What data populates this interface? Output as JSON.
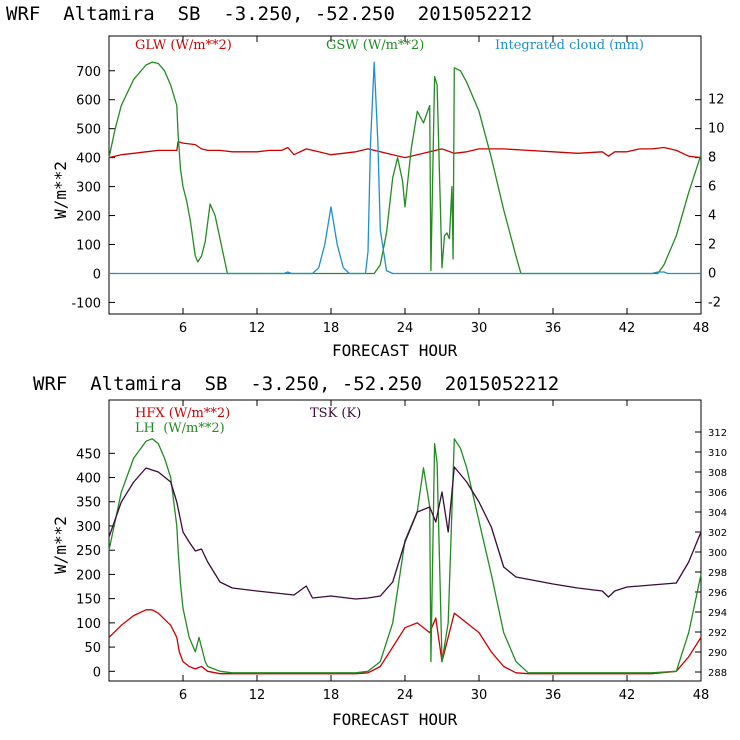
{
  "chart_data": [
    {
      "type": "line",
      "title": "WRF  Altamira  SB  -3.250, -52.250  2015052212",
      "xlabel": "FORECAST HOUR",
      "ylabel": "W/m**2",
      "xlim": [
        0,
        48
      ],
      "ylim": [
        -140,
        820
      ],
      "y2lim": [
        -2.8,
        16.4
      ],
      "xticks": [
        6,
        12,
        18,
        24,
        30,
        36,
        42,
        48
      ],
      "yticks": [
        -100,
        0,
        100,
        200,
        300,
        400,
        500,
        600,
        700
      ],
      "y2ticks": [
        -2,
        0,
        2,
        4,
        6,
        8,
        10,
        12
      ],
      "legend": [
        {
          "label": "GLW (W/m**2)",
          "color": "#cc0000"
        },
        {
          "label": "GSW (W/m**2)",
          "color": "#228B22"
        },
        {
          "label": "Integrated cloud (mm)",
          "color": "#1e8fd0"
        }
      ],
      "series": [
        {
          "name": "GLW",
          "axis": "left",
          "color": "#cc0000",
          "x": [
            0,
            1,
            2,
            3,
            4,
            5,
            5.5,
            5.6,
            6,
            7,
            7.5,
            8,
            9,
            10,
            12,
            13,
            14,
            14.5,
            15,
            16,
            17,
            18,
            19,
            20,
            21,
            22,
            23,
            24,
            25,
            26,
            27,
            28,
            29,
            30,
            32,
            34,
            36,
            38,
            40,
            40.5,
            41,
            42,
            43,
            44,
            45,
            46,
            47,
            48
          ],
          "y": [
            400,
            410,
            415,
            420,
            425,
            425,
            425,
            455,
            450,
            445,
            430,
            425,
            425,
            420,
            420,
            425,
            425,
            435,
            410,
            430,
            420,
            410,
            415,
            420,
            430,
            420,
            410,
            400,
            410,
            420,
            430,
            415,
            420,
            430,
            430,
            425,
            420,
            415,
            420,
            405,
            420,
            420,
            430,
            430,
            435,
            425,
            405,
            400
          ]
        },
        {
          "name": "GSW",
          "axis": "left",
          "color": "#228B22",
          "x": [
            0,
            0.5,
            1,
            2,
            3,
            3.5,
            4,
            4.5,
            5,
            5.5,
            5.6,
            5.8,
            6,
            6.3,
            6.6,
            7,
            7.2,
            7.5,
            7.8,
            8.2,
            8.6,
            9,
            9.3,
            9.6,
            21.5,
            22,
            22.5,
            23,
            23.4,
            23.8,
            24,
            24.5,
            25,
            25.5,
            26,
            26.1,
            26.4,
            26.6,
            27,
            27.2,
            27.4,
            27.6,
            27.8,
            27.9,
            28,
            28.5,
            29,
            30,
            31,
            32,
            33,
            33.4,
            44.5,
            45,
            46,
            47,
            48
          ],
          "y": [
            400,
            500,
            580,
            670,
            720,
            730,
            725,
            700,
            650,
            580,
            480,
            360,
            300,
            250,
            180,
            60,
            40,
            60,
            110,
            240,
            200,
            120,
            60,
            0,
            0,
            30,
            140,
            330,
            400,
            320,
            230,
            430,
            560,
            520,
            580,
            10,
            680,
            650,
            20,
            130,
            140,
            120,
            300,
            50,
            710,
            700,
            660,
            560,
            400,
            220,
            60,
            0,
            0,
            30,
            130,
            280,
            410
          ]
        },
        {
          "name": "Integrated cloud",
          "axis": "right",
          "color": "#1e8fd0",
          "x": [
            0,
            14.2,
            14.5,
            14.8,
            16.5,
            17,
            17.5,
            18,
            18.5,
            19,
            19.5,
            20.8,
            21,
            21.2,
            21.5,
            21.8,
            22,
            22.5,
            23,
            44,
            44.5,
            45,
            45.3,
            48
          ],
          "y": [
            0,
            0,
            0.1,
            0,
            0,
            0.4,
            2,
            4.6,
            2,
            0.4,
            0,
            0,
            1.5,
            9,
            14.6,
            9,
            3,
            0.2,
            0,
            0,
            0.1,
            0.1,
            0,
            0
          ]
        }
      ]
    },
    {
      "type": "line",
      "title": "WRF  Altamira  SB  -3.250, -52.250  2015052212",
      "xlabel": "FORECAST HOUR",
      "ylabel": "W/m**2",
      "xlim": [
        0,
        48
      ],
      "ylim": [
        -20,
        560
      ],
      "y2lim": [
        287.1,
        315.2
      ],
      "xticks": [
        6,
        12,
        18,
        24,
        30,
        36,
        42,
        48
      ],
      "yticks": [
        0,
        50,
        100,
        150,
        200,
        250,
        300,
        350,
        400,
        450
      ],
      "y2ticks": [
        288,
        290,
        292,
        294,
        296,
        298,
        300,
        302,
        304,
        306,
        308,
        310,
        312
      ],
      "legend": [
        {
          "label": "HFX (W/m**2)",
          "color": "#cc0000"
        },
        {
          "label": "LH  (W/m**2)",
          "color": "#228B22"
        },
        {
          "label": "TSK (K)",
          "color": "#3c0a3c"
        }
      ],
      "series": [
        {
          "name": "HFX",
          "axis": "left",
          "color": "#cc0000",
          "x": [
            0,
            1,
            2,
            3,
            3.5,
            4,
            5,
            5.5,
            5.7,
            6,
            6.5,
            7,
            7.5,
            8,
            9,
            10,
            14,
            18,
            20,
            21,
            22,
            23,
            24,
            25,
            26,
            26.5,
            27,
            28,
            28.5,
            30,
            31,
            32,
            33,
            34,
            40,
            44,
            46,
            47,
            48
          ],
          "y": [
            70,
            95,
            115,
            127,
            127,
            120,
            95,
            70,
            40,
            20,
            10,
            5,
            10,
            0,
            -5,
            -5,
            -5,
            -5,
            -5,
            -3,
            10,
            50,
            90,
            100,
            80,
            110,
            20,
            120,
            110,
            80,
            40,
            10,
            -3,
            -5,
            -5,
            -5,
            0,
            30,
            70
          ]
        },
        {
          "name": "LH",
          "axis": "left",
          "color": "#228B22",
          "x": [
            0,
            1,
            2,
            3,
            3.5,
            4,
            4.5,
            5,
            5.5,
            5.6,
            5.8,
            6,
            6.5,
            7,
            7.3,
            7.6,
            7.8,
            8,
            8.5,
            9,
            10,
            14,
            18,
            20,
            21,
            22,
            23,
            24,
            25,
            25.5,
            26,
            26.1,
            26.4,
            26.6,
            27,
            27.5,
            28,
            28.5,
            29,
            30,
            31,
            32,
            33,
            34,
            40,
            44,
            46,
            47,
            48
          ],
          "y": [
            250,
            370,
            440,
            475,
            480,
            470,
            440,
            400,
            300,
            250,
            180,
            130,
            70,
            40,
            70,
            40,
            20,
            10,
            5,
            0,
            -3,
            -3,
            -3,
            -3,
            0,
            20,
            100,
            270,
            330,
            420,
            340,
            20,
            470,
            430,
            20,
            100,
            480,
            460,
            420,
            310,
            200,
            80,
            20,
            -3,
            -3,
            -3,
            0,
            80,
            200
          ]
        },
        {
          "name": "TSK",
          "axis": "right",
          "color": "#3c0a3c",
          "x": [
            0,
            1,
            2,
            3,
            4,
            5,
            5.5,
            6,
            6.5,
            7,
            7.5,
            8,
            9,
            10,
            12,
            15,
            16,
            16.5,
            18,
            20,
            21,
            22,
            23,
            24,
            25,
            26,
            26.5,
            27,
            27.5,
            28,
            29,
            30,
            31,
            32,
            33,
            36,
            38,
            40,
            40.5,
            41,
            42,
            44,
            46,
            47,
            48
          ],
          "y": [
            301.5,
            305,
            307,
            308.4,
            308,
            307,
            305,
            302,
            301,
            300.1,
            300.3,
            299,
            297,
            296.4,
            296.1,
            295.7,
            296.6,
            295.4,
            295.6,
            295.3,
            295.4,
            295.6,
            297,
            301,
            304,
            304.5,
            303,
            306,
            302,
            308.5,
            307,
            305,
            302.5,
            298.5,
            297.5,
            296.8,
            296.4,
            296.1,
            295.5,
            296.1,
            296.5,
            296.7,
            296.9,
            299,
            302
          ]
        }
      ]
    }
  ]
}
